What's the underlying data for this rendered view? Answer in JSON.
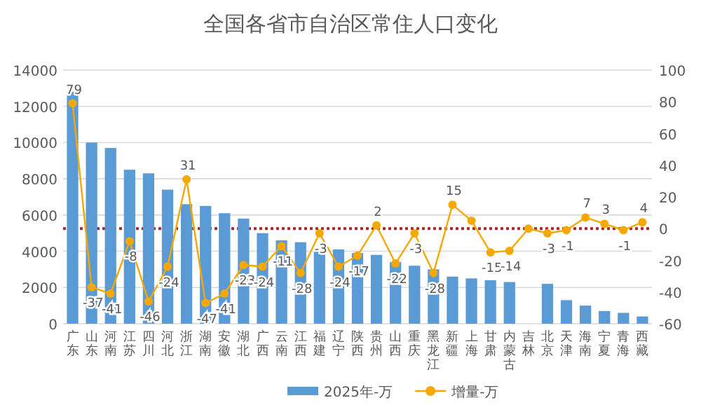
{
  "chart_data": {
    "type": "bar",
    "title": "全国各省市自治区常住人口变化",
    "categories": [
      "广东",
      "山东",
      "河南",
      "江苏",
      "四川",
      "河北",
      "浙江",
      "湖南",
      "安徽",
      "湖北",
      "广西",
      "云南",
      "江西",
      "福建",
      "辽宁",
      "陕西",
      "贵州",
      "山西",
      "重庆",
      "黑龙江",
      "新疆",
      "上海",
      "甘肃",
      "内蒙古",
      "吉林",
      "北京",
      "天津",
      "海南",
      "宁夏",
      "青海",
      "西藏"
    ],
    "series": [
      {
        "name": "2025年-万",
        "color": "#5b9bd5",
        "values": [
          12800,
          10000,
          9700,
          8500,
          8300,
          7400,
          6600,
          6500,
          6100,
          5800,
          5000,
          4600,
          4500,
          4200,
          4100,
          3900,
          3800,
          3400,
          3200,
          3000,
          2600,
          2500,
          2400,
          2300,
          null,
          2200,
          1300,
          1000,
          700,
          600,
          400
        ]
      },
      {
        "name": "增量-万",
        "type": "line",
        "axis": "y2",
        "color": "#f5a800",
        "values": [
          79,
          -37,
          -41,
          -8,
          -46,
          -24,
          31,
          -47,
          -41,
          -23,
          -24,
          -11,
          -28,
          -3,
          -24,
          -17,
          2,
          -22,
          -3,
          -28,
          15,
          5,
          -15,
          -14,
          0,
          -3,
          -1,
          7,
          3,
          -1,
          4
        ],
        "value_labels": [
          "79",
          "-37",
          "-41",
          "-8",
          "-46",
          "-24",
          "31",
          "-47",
          "-41",
          "-23",
          "-24",
          "-11",
          "-28",
          "-3",
          "-24",
          "-17",
          "2",
          "-22",
          "-3",
          "-28",
          "15",
          null,
          "-15",
          "-14",
          null,
          "-3",
          "-1",
          "7",
          "3",
          "-1",
          "4"
        ]
      }
    ],
    "ylim": [
      0,
      14000
    ],
    "yticks": [
      0,
      2000,
      4000,
      6000,
      8000,
      10000,
      12000,
      14000
    ],
    "y2lim": [
      -60,
      100
    ],
    "y2ticks": [
      -60,
      -40,
      -20,
      0,
      20,
      40,
      60,
      80,
      100
    ],
    "grid": "y",
    "legend": "bottom",
    "marker": "circle",
    "ref_lines": [
      {
        "axis": "y2",
        "value": 0,
        "color": "#a52a2a",
        "line_style": "dotted"
      }
    ]
  }
}
